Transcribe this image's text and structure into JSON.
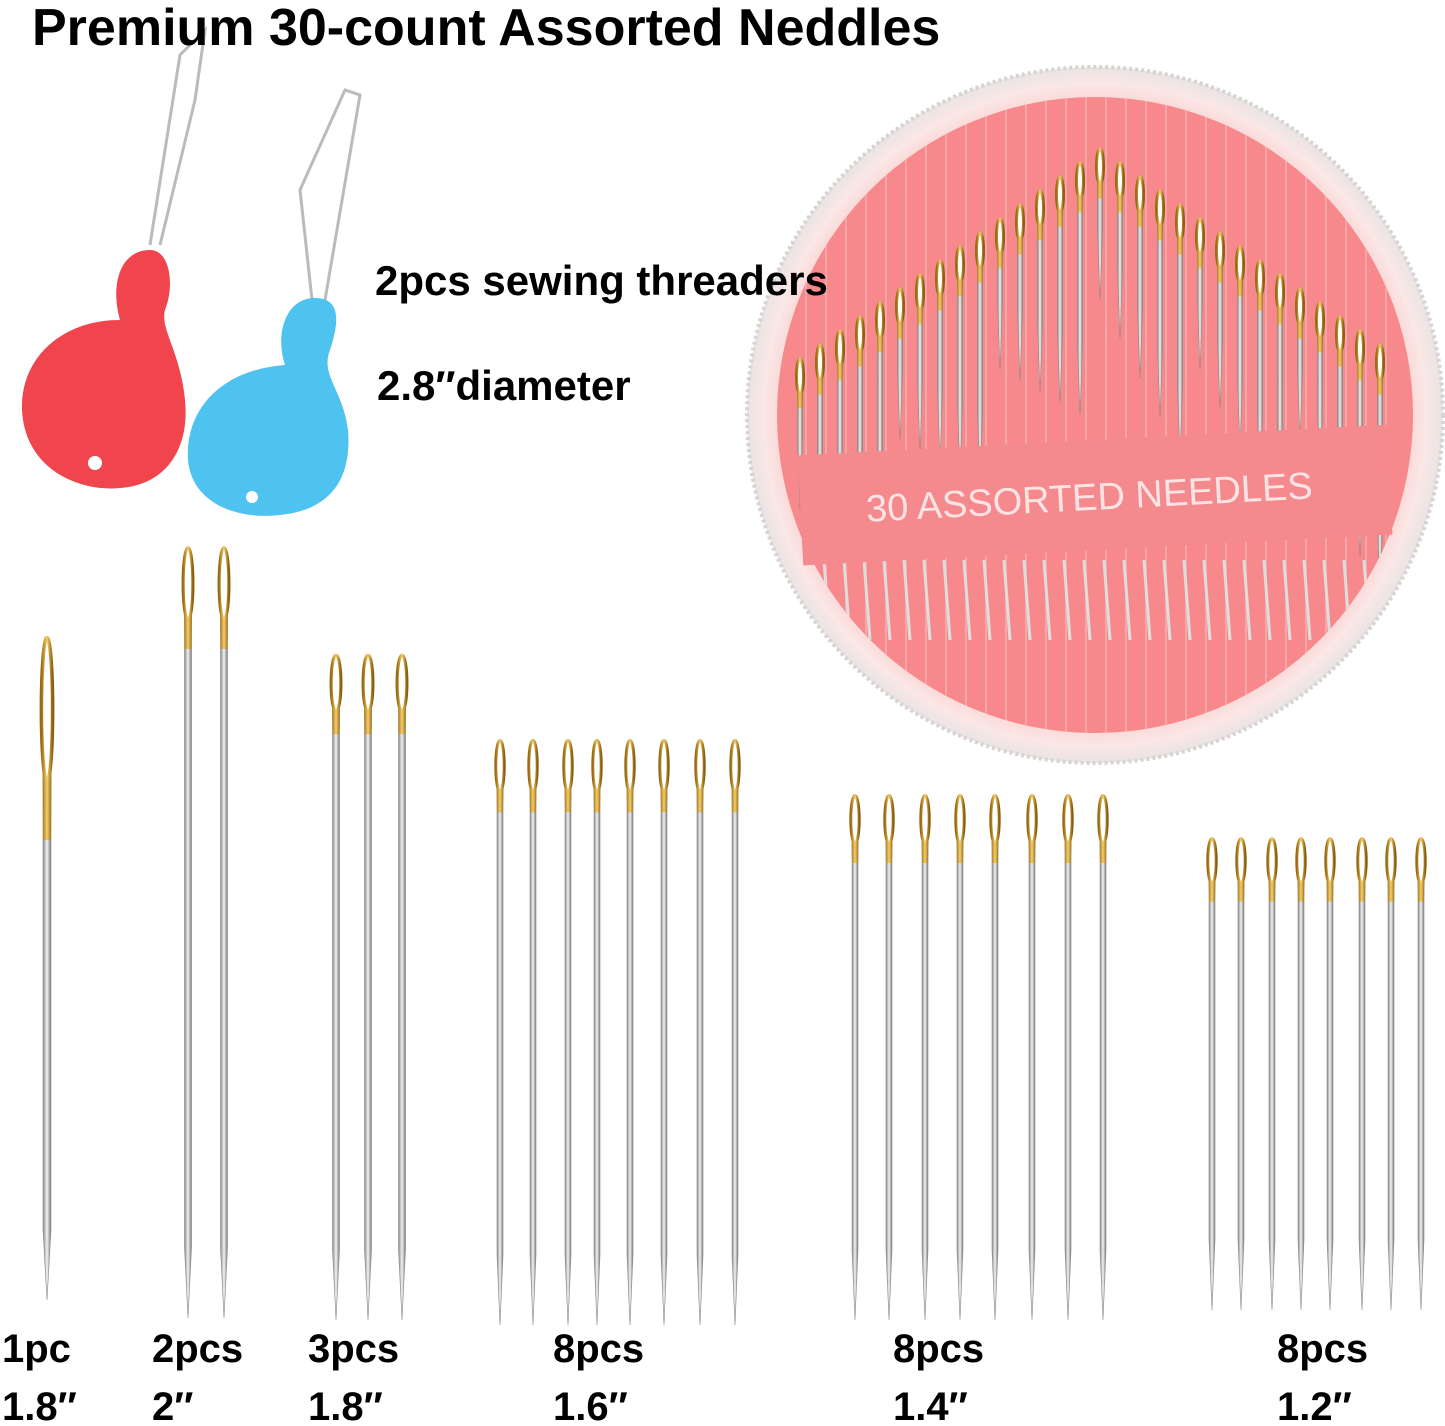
{
  "header": {
    "title": "Premium 30-count Assorted Neddles"
  },
  "threaders": {
    "label": "2pcs sewing threaders",
    "diameter": "2.8″diameter"
  },
  "case": {
    "label": "30 ASSORTED  NEEDLES"
  },
  "groups": [
    {
      "count": "1pc",
      "length": "1.8″"
    },
    {
      "count": "2pcs",
      "length": "2″"
    },
    {
      "count": "3pcs",
      "length": "1.8″"
    },
    {
      "count": "8pcs",
      "length": "1.6″"
    },
    {
      "count": "8pcs",
      "length": "1.4″"
    },
    {
      "count": "8pcs",
      "length": "1.2″"
    }
  ]
}
